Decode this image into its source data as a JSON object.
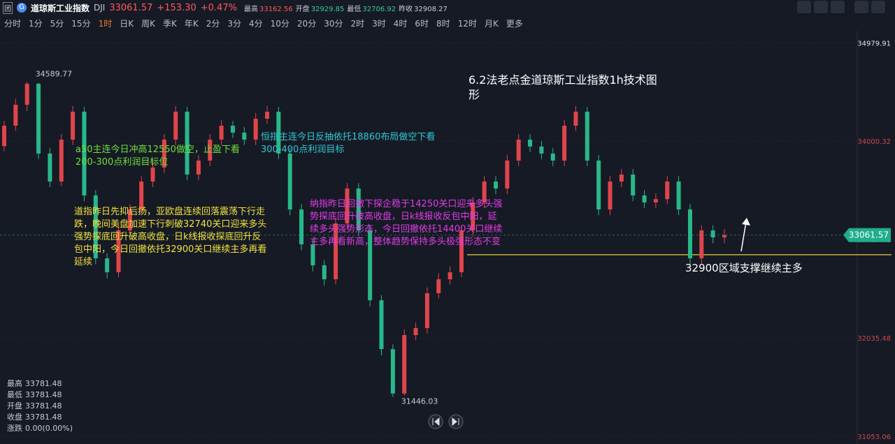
{
  "header": {
    "name": "道琼斯工业指数",
    "symbol": "DJI",
    "price": "33061.57",
    "change": "+153.30",
    "change_pct": "+0.47%",
    "stats": [
      [
        "最高",
        "33162.56"
      ],
      [
        "开盘",
        "32929.85"
      ],
      [
        "最低",
        "32706.92"
      ],
      [
        "昨收",
        "32908.27"
      ]
    ]
  },
  "timeframes": [
    "分时",
    "1分",
    "5分",
    "15分",
    "1时",
    "日K",
    "周K",
    "季K",
    "年K",
    "2分",
    "3分",
    "4分",
    "10分",
    "20分",
    "30分",
    "2时",
    "3时",
    "4时",
    "6时",
    "8时",
    "12时",
    "月K",
    "更多"
  ],
  "active_timeframe": "1时",
  "info_panel": [
    [
      "最高",
      "33781.48"
    ],
    [
      "最低",
      "33781.48"
    ],
    [
      "开盘",
      "33781.48"
    ],
    [
      "收盘",
      "33781.48"
    ],
    [
      "涨跌",
      "0.00(0.00%)"
    ]
  ],
  "chart_data": {
    "type": "candlestick",
    "up_color": "#e0454b",
    "down_color": "#28b88a",
    "ylim": [
      30976,
      35129
    ],
    "yticks": [
      34979.91,
      34000.32,
      33017.96,
      32035.48,
      31053.06
    ],
    "support_level": 32900,
    "candles": [
      [
        33950,
        34200,
        33900,
        34153
      ],
      [
        34153,
        34420,
        34100,
        34362
      ],
      [
        34362,
        34589.77,
        34300,
        34572
      ],
      [
        34572,
        34580,
        33820,
        33875
      ],
      [
        33875,
        33930,
        33540,
        33596
      ],
      [
        33596,
        34070,
        33550,
        34014
      ],
      [
        34014,
        34350,
        33960,
        34293
      ],
      [
        34293,
        34340,
        33400,
        33457
      ],
      [
        33457,
        33510,
        32770,
        32829
      ],
      [
        32829,
        32880,
        32630,
        32690
      ],
      [
        32690,
        33160,
        32640,
        33108
      ],
      [
        33108,
        33370,
        33050,
        33317
      ],
      [
        33317,
        33650,
        33260,
        33596
      ],
      [
        33596,
        33790,
        33540,
        33736
      ],
      [
        33736,
        34070,
        33680,
        34014
      ],
      [
        34014,
        34350,
        33960,
        34293
      ],
      [
        34293,
        34340,
        33610,
        33666
      ],
      [
        33666,
        33860,
        33610,
        33805
      ],
      [
        33805,
        34070,
        33750,
        34014
      ],
      [
        34014,
        34210,
        33960,
        34153
      ],
      [
        34153,
        34200,
        34030,
        34084
      ],
      [
        34084,
        34140,
        33960,
        34014
      ],
      [
        34014,
        34280,
        33960,
        34223
      ],
      [
        34223,
        34350,
        34170,
        34293
      ],
      [
        34293,
        34340,
        33820,
        33875
      ],
      [
        33875,
        33930,
        33260,
        33317
      ],
      [
        33317,
        33370,
        32910,
        32969
      ],
      [
        32969,
        33020,
        32700,
        32760
      ],
      [
        32760,
        32810,
        32560,
        32620
      ],
      [
        32620,
        33230,
        32570,
        33178
      ],
      [
        33178,
        33580,
        33120,
        33526
      ],
      [
        33526,
        33580,
        33050,
        33108
      ],
      [
        33108,
        33160,
        32350,
        32411
      ],
      [
        32411,
        32460,
        31860,
        31923
      ],
      [
        31923,
        31970,
        31446.03,
        31480
      ],
      [
        31480,
        32120,
        31460,
        32063
      ],
      [
        32063,
        32190,
        32010,
        32133
      ],
      [
        32133,
        32540,
        32080,
        32481
      ],
      [
        32481,
        32680,
        32430,
        32620
      ],
      [
        32620,
        32750,
        32570,
        32690
      ],
      [
        32690,
        33160,
        32640,
        33108
      ],
      [
        33108,
        33440,
        33050,
        33387
      ],
      [
        33387,
        33650,
        33330,
        33596
      ],
      [
        33596,
        33650,
        33470,
        33526
      ],
      [
        33526,
        33860,
        33470,
        33805
      ],
      [
        33805,
        34070,
        33750,
        34014
      ],
      [
        34014,
        34070,
        33890,
        33945
      ],
      [
        33945,
        34000,
        33820,
        33875
      ],
      [
        33875,
        33930,
        33750,
        33805
      ],
      [
        33805,
        34210,
        33750,
        34153
      ],
      [
        34153,
        34350,
        34100,
        34293
      ],
      [
        34293,
        34340,
        33750,
        33805
      ],
      [
        33805,
        33860,
        33260,
        33317
      ],
      [
        33317,
        33650,
        33260,
        33596
      ],
      [
        33596,
        33720,
        33540,
        33666
      ],
      [
        33666,
        33720,
        33400,
        33457
      ],
      [
        33457,
        33510,
        33330,
        33387
      ],
      [
        33387,
        33480,
        33330,
        33420
      ],
      [
        33420,
        33650,
        33370,
        33596
      ],
      [
        33596,
        33650,
        33260,
        33317
      ],
      [
        33317,
        33370,
        32770,
        32829
      ],
      [
        32829,
        33160,
        32770,
        33108
      ],
      [
        33108,
        33160,
        32980,
        33038
      ],
      [
        33038,
        33120,
        32980,
        33061.57
      ]
    ],
    "annotations": [
      {
        "color": "#ffffff",
        "size": 16,
        "lines": [
          "6.2法老点金道琼斯工业指数1h技术图",
          "形"
        ]
      },
      {
        "color": "#6fe03a",
        "size": 13,
        "lines": [
          "a50主连今日冲高12550做空，止盈下看",
          "200-300点利润目标位"
        ]
      },
      {
        "color": "#2ec9d6",
        "size": 13,
        "lines": [
          "恒指主连今日反抽依托18860布局做空下看",
          "300-400点利润目标"
        ]
      },
      {
        "color": "#f2e23a",
        "size": 13,
        "lines": [
          "道指昨日先抑后扬，亚欧盘连续回落震荡下行走",
          "跌，晚间美盘加速下行刺破32740关口迎来多头",
          "强势探底回升破高收盘，日k线报收探底回升反",
          "包中阳，今日回撤依托32900关口继续主多再看",
          "延续"
        ]
      },
      {
        "color": "#e23be8",
        "size": 13,
        "lines": [
          "纳指昨日回撤下探企稳于14250关口迎来多头强",
          "势探底回升破高收盘，日k线报收反包中阳，延",
          "续多头强势形态，今日回撤依托14400关口继续",
          "主多再看新高，整体趋势保持多头极强形态不变"
        ]
      },
      {
        "color": "#ffffff",
        "size": 15,
        "lines": [
          "32900区域支撑继续主多"
        ]
      }
    ]
  }
}
